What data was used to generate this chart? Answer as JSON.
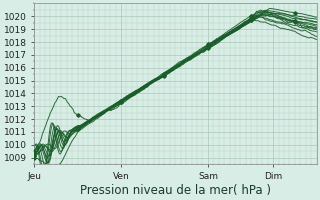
{
  "title": "",
  "xlabel": "Pression niveau de la mer( hPa )",
  "ylabel": "",
  "ylim": [
    1008.5,
    1021.0
  ],
  "yticks": [
    1009,
    1010,
    1011,
    1012,
    1013,
    1014,
    1015,
    1016,
    1017,
    1018,
    1019,
    1020
  ],
  "day_labels": [
    "Jeu",
    "Ven",
    "Sam",
    "Dim"
  ],
  "day_positions": [
    0,
    96,
    192,
    264
  ],
  "total_hours": 312,
  "bg_color": "#d8ede5",
  "grid_color": "#a8c8b8",
  "line_color": "#1a5c2a",
  "marker_color": "#1a5c2a",
  "tick_label_fontsize": 6.5,
  "xlabel_fontsize": 8.5
}
